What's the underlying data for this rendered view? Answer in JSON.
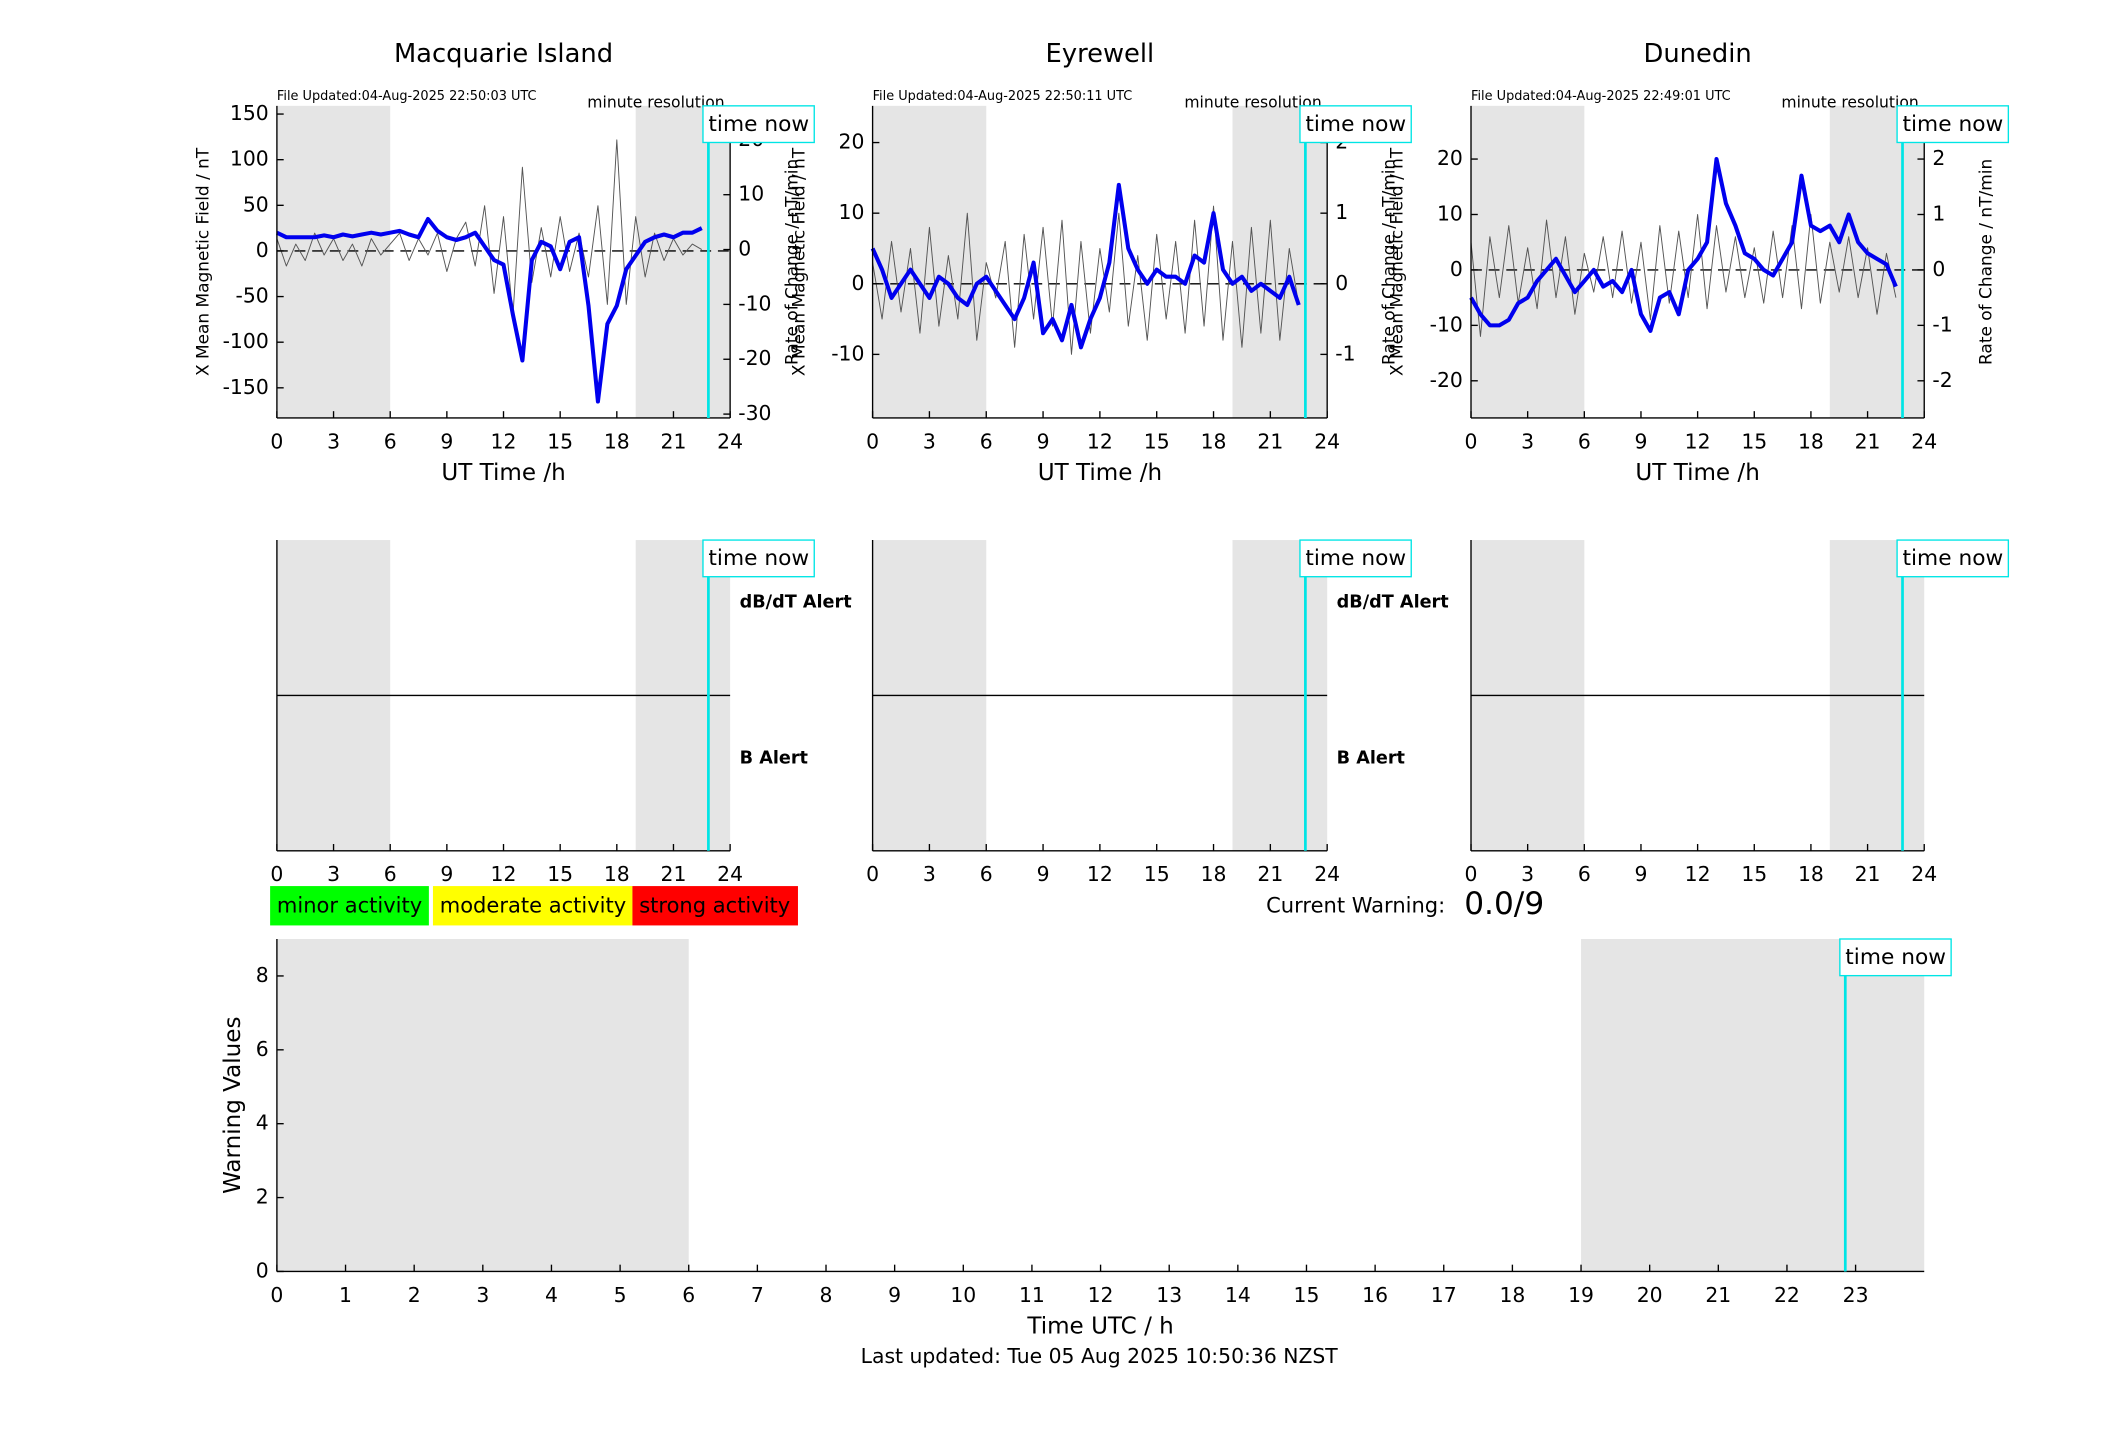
{
  "chart_data": [
    {
      "type": "line",
      "title": "Macquarie Island",
      "subtitle": "File Updated:04-Aug-2025 22:50:03 UTC",
      "annotation": "minute resolution",
      "time_now_label": "time now",
      "time_now": 22.85,
      "xlabel": "UT Time /h",
      "ylabel": "X Mean Magnetic Field / nT",
      "y2label": "Rate of Change / nT/min",
      "ycolor": "#0000ff",
      "xlim": [
        0,
        24
      ],
      "xticks": [
        0,
        3,
        6,
        9,
        12,
        15,
        18,
        21,
        24
      ],
      "ylim": [
        -183,
        159
      ],
      "yticks": [
        -150,
        -100,
        -50,
        0,
        50,
        100,
        150
      ],
      "y2lim": [
        -30.7,
        26.2
      ],
      "y2ticks": [
        -30,
        -20,
        -10,
        0,
        10,
        20
      ],
      "shaded_spans": [
        [
          0,
          6
        ],
        [
          19,
          24
        ]
      ],
      "reference_line": 0,
      "reference_style": "dashed",
      "x": [
        0,
        0.5,
        1,
        1.5,
        2,
        2.5,
        3,
        3.5,
        4,
        4.5,
        5,
        5.5,
        6,
        6.5,
        7,
        7.5,
        8,
        8.5,
        9,
        9.5,
        10,
        10.5,
        11,
        11.5,
        12,
        12.5,
        13,
        13.5,
        14,
        14.5,
        15,
        15.5,
        16,
        16.5,
        17,
        17.5,
        18,
        18.5,
        19,
        19.5,
        20,
        20.5,
        21,
        21.5,
        22,
        22.5
      ],
      "series": [
        {
          "color": "#555555",
          "axis": "y2",
          "values": [
            2,
            -3,
            1,
            -2,
            3,
            -1,
            2,
            -2,
            1,
            -3,
            2,
            -1,
            1,
            3,
            -2,
            2,
            -1,
            3,
            -4,
            2,
            5,
            -3,
            8,
            -8,
            6,
            -12,
            15,
            -6,
            4,
            -5,
            6,
            -4,
            3,
            -5,
            8,
            -10,
            20,
            -10,
            6,
            -5,
            3,
            -2,
            2,
            -1,
            1,
            0
          ]
        },
        {
          "color": "#0000ee",
          "values": [
            20,
            15,
            15,
            15,
            15,
            17,
            15,
            18,
            16,
            18,
            20,
            18,
            20,
            22,
            18,
            15,
            35,
            22,
            15,
            12,
            15,
            20,
            5,
            -10,
            -15,
            -70,
            -120,
            -10,
            10,
            5,
            -20,
            10,
            15,
            -60,
            -165,
            -80,
            -60,
            -20,
            -5,
            10,
            15,
            18,
            15,
            20,
            20,
            25
          ]
        }
      ]
    },
    {
      "type": "line",
      "title": "Eyrewell",
      "subtitle": "File Updated:04-Aug-2025 22:50:11 UTC",
      "annotation": "minute resolution",
      "time_now_label": "time now",
      "time_now": 22.85,
      "xlabel": "UT Time /h",
      "ylabel": "X Mean Magnetic Field / nT",
      "y2label": "Rate of Change / nT/min",
      "ycolor": "#0000ff",
      "xlim": [
        0,
        24
      ],
      "xticks": [
        0,
        3,
        6,
        9,
        12,
        15,
        18,
        21,
        24
      ],
      "ylim": [
        -19,
        25.2
      ],
      "yticks": [
        -10,
        0,
        10,
        20
      ],
      "y2lim": [
        -1.9,
        2.52
      ],
      "y2ticks": [
        -1,
        0,
        1,
        2
      ],
      "shaded_spans": [
        [
          0,
          6
        ],
        [
          19,
          24
        ]
      ],
      "reference_line": 0,
      "reference_style": "dashed",
      "x": [
        0,
        0.5,
        1,
        1.5,
        2,
        2.5,
        3,
        3.5,
        4,
        4.5,
        5,
        5.5,
        6,
        6.5,
        7,
        7.5,
        8,
        8.5,
        9,
        9.5,
        10,
        10.5,
        11,
        11.5,
        12,
        12.5,
        13,
        13.5,
        14,
        14.5,
        15,
        15.5,
        16,
        16.5,
        17,
        17.5,
        18,
        18.5,
        19,
        19.5,
        20,
        20.5,
        21,
        21.5,
        22,
        22.5
      ],
      "series": [
        {
          "color": "#555555",
          "axis": "y2",
          "values": [
            0.3,
            -0.5,
            0.6,
            -0.4,
            0.5,
            -0.7,
            0.8,
            -0.6,
            0.4,
            -0.5,
            1.0,
            -0.8,
            0.3,
            -0.2,
            0.6,
            -0.9,
            0.7,
            -0.5,
            0.8,
            -0.6,
            0.9,
            -1.0,
            0.6,
            -0.7,
            0.5,
            -0.4,
            1.0,
            -0.6,
            0.4,
            -0.8,
            0.7,
            -0.5,
            0.6,
            -0.7,
            0.9,
            -0.6,
            1.1,
            -0.8,
            0.6,
            -0.9,
            0.8,
            -0.7,
            0.9,
            -0.8,
            0.5,
            -0.3
          ]
        },
        {
          "color": "#0000ee",
          "values": [
            5,
            2,
            -2,
            0,
            2,
            0,
            -2,
            1,
            0,
            -2,
            -3,
            0,
            1,
            -1,
            -3,
            -5,
            -2,
            3,
            -7,
            -5,
            -8,
            -3,
            -9,
            -5,
            -2,
            3,
            14,
            5,
            2,
            0,
            2,
            1,
            1,
            0,
            4,
            3,
            10,
            2,
            0,
            1,
            -1,
            0,
            -1,
            -2,
            1,
            -3
          ]
        }
      ]
    },
    {
      "type": "line",
      "title": "Dunedin",
      "subtitle": "File Updated:04-Aug-2025 22:49:01 UTC",
      "annotation": "minute resolution",
      "time_now_label": "time now",
      "time_now": 22.85,
      "xlabel": "UT Time /h",
      "ylabel": "X Mean Magnetic Field / nT",
      "y2label": "Rate of Change / nT/min",
      "ycolor": "#0000ff",
      "xlim": [
        0,
        24
      ],
      "xticks": [
        0,
        3,
        6,
        9,
        12,
        15,
        18,
        21,
        24
      ],
      "ylim": [
        -26.7,
        29.6
      ],
      "yticks": [
        -20,
        -10,
        0,
        10,
        20
      ],
      "y2lim": [
        -2.67,
        2.96
      ],
      "y2ticks": [
        -2,
        -1,
        0,
        1,
        2
      ],
      "shaded_spans": [
        [
          0,
          6
        ],
        [
          19,
          24
        ]
      ],
      "reference_line": 0,
      "reference_style": "dashed",
      "x": [
        0,
        0.5,
        1,
        1.5,
        2,
        2.5,
        3,
        3.5,
        4,
        4.5,
        5,
        5.5,
        6,
        6.5,
        7,
        7.5,
        8,
        8.5,
        9,
        9.5,
        10,
        10.5,
        11,
        11.5,
        12,
        12.5,
        13,
        13.5,
        14,
        14.5,
        15,
        15.5,
        16,
        16.5,
        17,
        17.5,
        18,
        18.5,
        19,
        19.5,
        20,
        20.5,
        21,
        21.5,
        22,
        22.5
      ],
      "series": [
        {
          "color": "#555555",
          "axis": "y2",
          "values": [
            0.5,
            -1.2,
            0.6,
            -0.5,
            0.8,
            -0.6,
            0.4,
            -0.7,
            0.9,
            -0.5,
            0.6,
            -0.8,
            0.3,
            -0.4,
            0.6,
            -0.5,
            0.7,
            -0.6,
            0.5,
            -0.9,
            0.8,
            -0.6,
            0.7,
            -0.5,
            1.0,
            -0.7,
            0.8,
            -0.4,
            0.6,
            -0.5,
            0.4,
            -0.6,
            0.7,
            -0.5,
            0.8,
            -0.7,
            1.0,
            -0.6,
            0.5,
            -0.4,
            0.6,
            -0.5,
            0.4,
            -0.8,
            0.3,
            -0.5
          ]
        },
        {
          "color": "#0000ee",
          "values": [
            -5,
            -8,
            -10,
            -10,
            -9,
            -6,
            -5,
            -2,
            0,
            2,
            -1,
            -4,
            -2,
            0,
            -3,
            -2,
            -4,
            0,
            -8,
            -11,
            -5,
            -4,
            -8,
            0,
            2,
            5,
            20,
            12,
            8,
            3,
            2,
            0,
            -1,
            2,
            5,
            17,
            8,
            7,
            8,
            5,
            10,
            5,
            3,
            2,
            1,
            -3
          ]
        }
      ]
    },
    {
      "type": "alert",
      "time_now_label": "time now",
      "time_now": 22.85,
      "xlim": [
        0,
        24
      ],
      "xticks": [
        0,
        3,
        6,
        9,
        12,
        15,
        18,
        21,
        24
      ],
      "ylim": [
        -1,
        1
      ],
      "shaded_spans": [
        [
          0,
          6
        ],
        [
          19,
          24
        ]
      ],
      "reference_line": 0,
      "reference_style": "solid",
      "alert_labels": [
        {
          "text": "dB/dT Alert",
          "color": "#000000"
        },
        {
          "text": "B Alert",
          "color": "#0000ff"
        }
      ]
    },
    {
      "type": "alert",
      "time_now_label": "time now",
      "time_now": 22.85,
      "xlim": [
        0,
        24
      ],
      "xticks": [
        0,
        3,
        6,
        9,
        12,
        15,
        18,
        21,
        24
      ],
      "ylim": [
        -1,
        1
      ],
      "shaded_spans": [
        [
          0,
          6
        ],
        [
          19,
          24
        ]
      ],
      "reference_line": 0,
      "reference_style": "solid",
      "alert_labels": [
        {
          "text": "dB/dT Alert",
          "color": "#000000"
        },
        {
          "text": "B Alert",
          "color": "#0000ff"
        }
      ]
    },
    {
      "type": "alert",
      "time_now_label": "time now",
      "time_now": 22.85,
      "xlim": [
        0,
        24
      ],
      "xticks": [
        0,
        3,
        6,
        9,
        12,
        15,
        18,
        21,
        24
      ],
      "ylim": [
        -1,
        1
      ],
      "shaded_spans": [
        [
          0,
          6
        ],
        [
          19,
          24
        ]
      ],
      "reference_line": 0,
      "reference_style": "solid"
    },
    {
      "type": "bar",
      "time_now_label": "time now",
      "time_now": 22.85,
      "xlabel": "Time UTC / h",
      "ylabel": "Warning Values",
      "ycolor": "#000000",
      "xlim": [
        0,
        24
      ],
      "xticks": [
        0,
        1,
        2,
        3,
        4,
        5,
        6,
        7,
        8,
        9,
        10,
        11,
        12,
        13,
        14,
        15,
        16,
        17,
        18,
        19,
        20,
        21,
        22,
        23
      ],
      "ylim": [
        0,
        9
      ],
      "yticks": [
        0,
        2,
        4,
        6,
        8
      ],
      "shaded_spans": [
        [
          0,
          6
        ],
        [
          19,
          24
        ]
      ],
      "activity_levels": [
        {
          "label": "minor activity",
          "color": "#00ff00"
        },
        {
          "label": "moderate activity",
          "color": "#ffff00"
        },
        {
          "label": "strong activity",
          "color": "#ff0000"
        }
      ],
      "current_warning_label": "Current Warning:",
      "current_warning": "0.0/9"
    }
  ],
  "footer": "Last updated: Tue 05 Aug 2025 10:50:36 NZST"
}
